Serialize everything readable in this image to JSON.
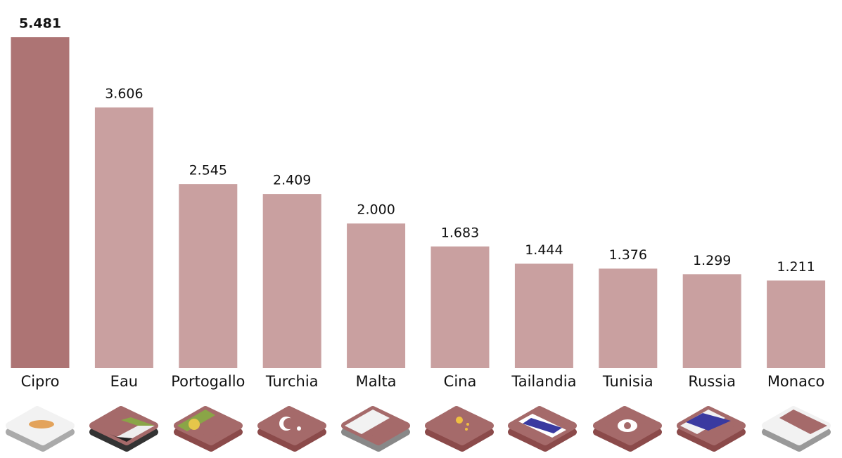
{
  "chart_data": {
    "type": "bar",
    "categories": [
      "Cipro",
      "Eau",
      "Portogallo",
      "Turchia",
      "Malta",
      "Cina",
      "Tailandia",
      "Tunisia",
      "Russia",
      "Monaco"
    ],
    "values": [
      5481,
      3606,
      2545,
      2409,
      2000,
      1683,
      1444,
      1376,
      1299,
      1211
    ],
    "value_labels": [
      "5.481",
      "3.606",
      "2.545",
      "2.409",
      "2.000",
      "1.683",
      "1.444",
      "1.376",
      "1.299",
      "1.211"
    ],
    "colors": [
      "#ad7474",
      "#c9a0a0",
      "#c9a0a0",
      "#c9a0a0",
      "#c9a0a0",
      "#c9a0a0",
      "#c9a0a0",
      "#c9a0a0",
      "#c9a0a0",
      "#c9a0a0"
    ]
  }
}
